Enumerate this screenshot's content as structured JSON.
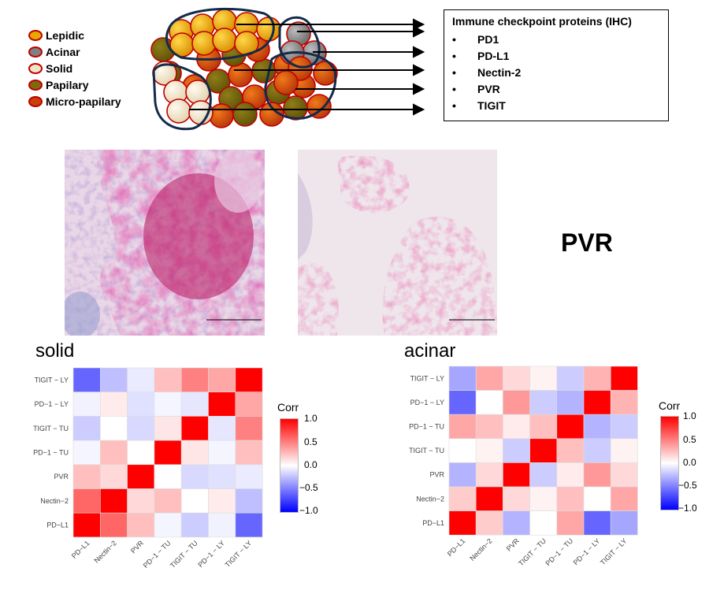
{
  "legend": {
    "items": [
      {
        "label": "Lepidic",
        "fill": "#e8a800"
      },
      {
        "label": "Acinar",
        "fill": "#808080"
      },
      {
        "label": "Solid",
        "fill": "#f1e4c8"
      },
      {
        "label": "Papilary",
        "fill": "#7a6a10"
      },
      {
        "label": "Micro-papilary",
        "fill": "#c8400a"
      }
    ]
  },
  "ihc": {
    "title": "Immune checkpoint proteins (IHC)",
    "items": [
      "PD1",
      "PD-L1",
      "Nectin-2",
      "PVR",
      "TIGIT"
    ],
    "bullet": "•"
  },
  "stain_label": "PVR",
  "panels": {
    "solid": {
      "title": "solid"
    },
    "acinar": {
      "title": "acinar"
    }
  },
  "colorbar": {
    "title": "Corr",
    "ticks": [
      "1.0",
      "0.5",
      "0.0",
      "−0.5",
      "−1.0"
    ],
    "colors": {
      "low": "#0000ff",
      "mid": "#ffffff",
      "high": "#ff0000"
    }
  },
  "chart_data": [
    {
      "type": "heatmap",
      "title": "solid",
      "x": [
        "PD−L1",
        "Nectin−2",
        "PVR",
        "PD−1 − TU",
        "TIGIT − TU",
        "PD−1 − LY",
        "TIGIT − LY"
      ],
      "y": [
        "TIGIT − LY",
        "PD−1 − LY",
        "TIGIT − TU",
        "PD−1 − TU",
        "PVR",
        "Nectin−2",
        "PD−L1"
      ],
      "z": [
        [
          -0.6,
          -0.25,
          -0.08,
          0.25,
          0.5,
          0.35,
          1.0
        ],
        [
          -0.05,
          0.08,
          -0.12,
          -0.04,
          -0.1,
          1.0,
          0.35
        ],
        [
          -0.2,
          0.0,
          -0.15,
          0.1,
          1.0,
          -0.1,
          0.5
        ],
        [
          -0.04,
          0.25,
          0.0,
          1.0,
          0.1,
          -0.04,
          0.25
        ],
        [
          0.25,
          0.15,
          1.0,
          0.0,
          -0.15,
          -0.12,
          -0.08
        ],
        [
          0.6,
          1.0,
          0.15,
          0.25,
          0.0,
          0.08,
          -0.25
        ],
        [
          1.0,
          0.6,
          0.25,
          -0.04,
          -0.2,
          -0.05,
          -0.6
        ]
      ],
      "zlim": [
        -1,
        1
      ],
      "legend_title": "Corr"
    },
    {
      "type": "heatmap",
      "title": "acinar",
      "x": [
        "PD−L1",
        "Nectin−2",
        "PVR",
        "TIGIT − TU",
        "PD−1 − TU",
        "PD−1 − LY",
        "TIGIT − LY"
      ],
      "y": [
        "TIGIT − LY",
        "PD−1 − LY",
        "PD−1 − TU",
        "TIGIT − TU",
        "PVR",
        "Nectin−2",
        "PD−L1"
      ],
      "z": [
        [
          -0.35,
          0.35,
          0.15,
          0.05,
          -0.2,
          0.3,
          1.0
        ],
        [
          -0.6,
          0.0,
          0.4,
          -0.2,
          -0.3,
          1.0,
          0.3
        ],
        [
          0.35,
          0.25,
          0.08,
          0.25,
          1.0,
          -0.3,
          -0.2
        ],
        [
          0.0,
          0.05,
          -0.2,
          1.0,
          0.25,
          -0.2,
          0.05
        ],
        [
          -0.3,
          0.15,
          1.0,
          -0.2,
          0.08,
          0.4,
          0.15
        ],
        [
          0.2,
          1.0,
          0.15,
          0.05,
          0.25,
          0.0,
          0.35
        ],
        [
          1.0,
          0.2,
          -0.3,
          0.0,
          0.35,
          -0.6,
          -0.35
        ]
      ],
      "zlim": [
        -1,
        1
      ],
      "legend_title": "Corr"
    }
  ]
}
